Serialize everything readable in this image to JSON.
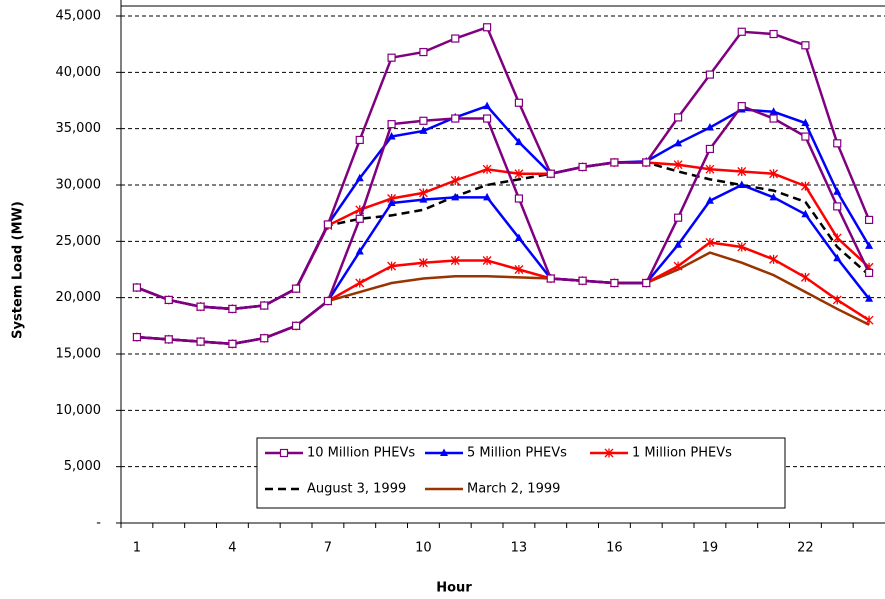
{
  "chart_data": {
    "type": "line",
    "xlabel": "Hour",
    "ylabel": "System Load (MW)",
    "categories": [
      1,
      null,
      null,
      4,
      null,
      null,
      7,
      null,
      null,
      10,
      null,
      null,
      13,
      null,
      null,
      16,
      null,
      null,
      19,
      null,
      null,
      22,
      null,
      null
    ],
    "ylim": [
      0,
      45000
    ],
    "yticks": [
      {
        "value": 0,
        "label": "-"
      },
      {
        "value": 5000,
        "label": "5,000"
      },
      {
        "value": 10000,
        "label": "10,000"
      },
      {
        "value": 15000,
        "label": "15,000"
      },
      {
        "value": 20000,
        "label": "20,000"
      },
      {
        "value": 25000,
        "label": "25,000"
      },
      {
        "value": 30000,
        "label": "30,000"
      },
      {
        "value": 35000,
        "label": "35,000"
      },
      {
        "value": 40000,
        "label": "40,000"
      },
      {
        "value": 45000,
        "label": "45,000"
      }
    ],
    "grid": true,
    "series": [
      {
        "name": "10 Million PHEVs",
        "color": "#800080",
        "marker": "square",
        "style": "solid",
        "curves": [
          [
            20900,
            19800,
            19200,
            19000,
            19300,
            20800,
            26500,
            34000,
            41300,
            41800,
            43000,
            44000,
            37300,
            31000,
            31600,
            32000,
            32000,
            36000,
            39800,
            43600,
            43400,
            42400,
            33700,
            26900
          ],
          [
            16500,
            16300,
            16100,
            15900,
            16400,
            17500,
            19700,
            27000,
            35400,
            35700,
            35900,
            35900,
            28800,
            21700,
            21500,
            21300,
            21300,
            27100,
            33200,
            37000,
            35900,
            34300,
            28100,
            22200
          ]
        ]
      },
      {
        "name": "5 Million PHEVs",
        "color": "#0000ff",
        "marker": "triangle",
        "style": "solid",
        "curves": [
          [
            20900,
            19800,
            19200,
            19000,
            19300,
            20800,
            26500,
            30600,
            34300,
            34800,
            36000,
            37000,
            33800,
            31000,
            31600,
            32000,
            32100,
            33700,
            35100,
            36700,
            36500,
            35500,
            29400,
            24600
          ],
          [
            16500,
            16300,
            16100,
            15900,
            16400,
            17500,
            19700,
            24100,
            28400,
            28700,
            28900,
            28900,
            25300,
            21700,
            21500,
            21300,
            21300,
            24700,
            28600,
            30000,
            28900,
            27400,
            23500,
            19900
          ]
        ]
      },
      {
        "name": "1 Million PHEVs",
        "color": "#ff0000",
        "marker": "star",
        "style": "solid",
        "curves": [
          [
            20900,
            19800,
            19200,
            19000,
            19300,
            20800,
            26400,
            27800,
            28800,
            29300,
            30400,
            31400,
            31000,
            31000,
            31600,
            32000,
            32000,
            31800,
            31400,
            31200,
            31000,
            29900,
            25300,
            22700
          ],
          [
            16500,
            16300,
            16100,
            15900,
            16400,
            17500,
            19700,
            21300,
            22800,
            23100,
            23300,
            23300,
            22500,
            21700,
            21500,
            21300,
            21300,
            22800,
            24900,
            24500,
            23400,
            21800,
            19800,
            18000
          ]
        ]
      },
      {
        "name": "August 3, 1999",
        "color": "#000000",
        "marker": "none",
        "style": "dashed",
        "curves": [
          [
            20900,
            19800,
            19200,
            19000,
            19300,
            20800,
            26400,
            27000,
            27300,
            27800,
            29000,
            30000,
            30500,
            31000,
            31600,
            32000,
            32000,
            31200,
            30500,
            30000,
            29500,
            28500,
            24500,
            22000
          ]
        ]
      },
      {
        "name": "March 2, 1999",
        "color": "#993300",
        "marker": "none",
        "style": "solid",
        "curves": [
          [
            16500,
            16300,
            16100,
            15900,
            16400,
            17500,
            19700,
            20500,
            21300,
            21700,
            21900,
            21900,
            21800,
            21700,
            21500,
            21300,
            21300,
            22500,
            24000,
            23100,
            22000,
            20500,
            19000,
            17600
          ]
        ]
      }
    ]
  }
}
